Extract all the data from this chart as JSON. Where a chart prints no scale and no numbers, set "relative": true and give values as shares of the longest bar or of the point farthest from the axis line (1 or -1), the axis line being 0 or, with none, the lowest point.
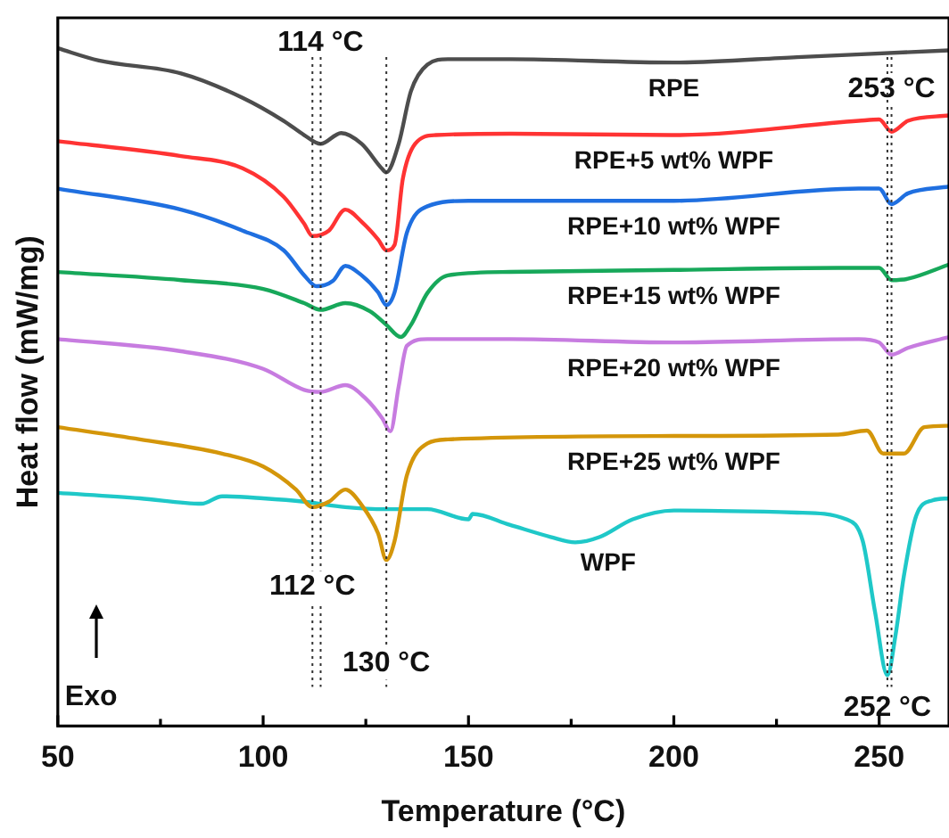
{
  "chart_data": {
    "type": "line",
    "xlabel": "Temperature (°C)",
    "ylabel": "Heat flow (mW/mg)",
    "relative": true,
    "xlim": [
      50,
      267
    ],
    "xticks": [
      50,
      {
        "value": 75,
        "label": null
      },
      100,
      {
        "value": 125,
        "label": null
      },
      150,
      {
        "value": 175,
        "label": null
      },
      200,
      {
        "value": 225,
        "label": null
      },
      250
    ],
    "grid": false,
    "legend": false,
    "marker": "none",
    "line_style": "solid",
    "series": [
      {
        "name": "RPE",
        "color": "#4d4d4d",
        "x": [
          50,
          60,
          80,
          95,
          105,
          110,
          114,
          119,
          124,
          129,
          130,
          133,
          136,
          140,
          145,
          160,
          200,
          230,
          267
        ],
        "values": [
          1.0,
          0.982,
          0.963,
          0.927,
          0.893,
          0.872,
          0.859,
          0.875,
          0.859,
          0.822,
          0.817,
          0.859,
          0.937,
          0.976,
          0.984,
          0.984,
          0.979,
          0.987,
          0.997
        ]
      },
      {
        "name": "RPE+5 wt% WPF",
        "color": "#ff3333",
        "x": [
          50,
          80,
          95,
          105,
          110,
          112,
          116,
          120,
          124,
          128,
          130,
          132,
          134,
          137,
          142,
          160,
          200,
          245,
          250,
          253,
          257,
          267
        ],
        "values": [
          0.863,
          0.841,
          0.823,
          0.781,
          0.741,
          0.723,
          0.731,
          0.762,
          0.744,
          0.718,
          0.702,
          0.71,
          0.807,
          0.859,
          0.872,
          0.874,
          0.872,
          0.893,
          0.895,
          0.877,
          0.893,
          0.901
        ]
      },
      {
        "name": "RPE+10 wt% WPF",
        "color": "#1f6fe0",
        "x": [
          50,
          80,
          95,
          105,
          110,
          113,
          117,
          120,
          124,
          128,
          130,
          132,
          135,
          140,
          150,
          200,
          245,
          250,
          253,
          257,
          267
        ],
        "values": [
          0.793,
          0.762,
          0.731,
          0.702,
          0.665,
          0.649,
          0.657,
          0.679,
          0.665,
          0.64,
          0.621,
          0.64,
          0.728,
          0.767,
          0.775,
          0.775,
          0.793,
          0.793,
          0.77,
          0.786,
          0.796
        ]
      },
      {
        "name": "RPE+15 wt% WPF",
        "color": "#17a85a",
        "x": [
          50,
          80,
          100,
          110,
          114,
          120,
          126,
          130,
          133.5,
          136,
          140,
          145,
          160,
          200,
          240,
          250,
          253,
          257,
          267
        ],
        "values": [
          0.67,
          0.658,
          0.645,
          0.624,
          0.614,
          0.624,
          0.612,
          0.592,
          0.574,
          0.592,
          0.639,
          0.665,
          0.67,
          0.673,
          0.676,
          0.676,
          0.658,
          0.66,
          0.681
        ]
      },
      {
        "name": "RPE+20 wt% WPF",
        "color": "#c77ce0",
        "x": [
          50,
          80,
          100,
          110,
          114,
          120,
          125,
          129,
          131,
          133,
          135,
          140,
          160,
          200,
          245,
          250,
          253,
          257,
          267
        ],
        "values": [
          0.571,
          0.553,
          0.527,
          0.496,
          0.493,
          0.503,
          0.483,
          0.454,
          0.435,
          0.501,
          0.561,
          0.571,
          0.571,
          0.566,
          0.571,
          0.566,
          0.548,
          0.558,
          0.574
        ]
      },
      {
        "name": "RPE+25 wt% WPF",
        "color": "#d4960a",
        "x": [
          50,
          70,
          90,
          100,
          108,
          112,
          116,
          120,
          124,
          128,
          130,
          132,
          135,
          140,
          145,
          200,
          240,
          247,
          251,
          256,
          261,
          267
        ],
        "values": [
          0.441,
          0.423,
          0.402,
          0.383,
          0.349,
          0.323,
          0.331,
          0.349,
          0.326,
          0.284,
          0.245,
          0.273,
          0.37,
          0.417,
          0.423,
          0.428,
          0.43,
          0.436,
          0.402,
          0.402,
          0.441,
          0.443
        ]
      },
      {
        "name": "WPF",
        "color": "#1fc8c8",
        "x": [
          50,
          70,
          85,
          90,
          100,
          110,
          120,
          130,
          140,
          150,
          151,
          160,
          170,
          176,
          182,
          190,
          200,
          230,
          242,
          246,
          249,
          252,
          254,
          256,
          259,
          263,
          267
        ],
        "values": [
          0.344,
          0.336,
          0.328,
          0.339,
          0.336,
          0.331,
          0.323,
          0.32,
          0.32,
          0.305,
          0.313,
          0.297,
          0.279,
          0.271,
          0.279,
          0.305,
          0.318,
          0.315,
          0.305,
          0.273,
          0.168,
          0.075,
          0.135,
          0.221,
          0.31,
          0.333,
          0.336
        ]
      }
    ],
    "ref_lines": [
      {
        "axis": "x",
        "value": 114,
        "label": "114 °C",
        "line_style": "dotted"
      },
      {
        "axis": "x",
        "value": 253,
        "label": "253 °C",
        "line_style": "dotted"
      },
      {
        "axis": "x",
        "value": 112,
        "label": "112 °C",
        "line_style": "dotted"
      },
      {
        "axis": "x",
        "value": 130,
        "label": "130 °C",
        "line_style": "dotted"
      },
      {
        "axis": "x",
        "value": 252,
        "label": "252 °C",
        "line_style": "dotted"
      }
    ],
    "annotations": [
      "Exo"
    ]
  }
}
